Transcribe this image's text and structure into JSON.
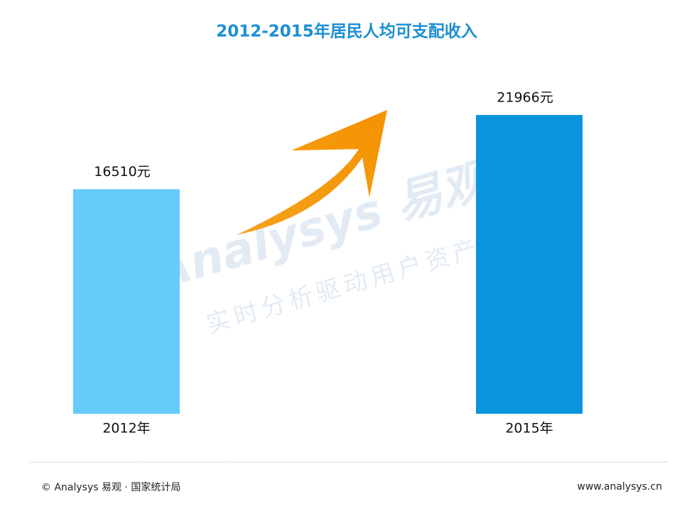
{
  "chart_data": {
    "type": "bar",
    "title": "2012-2015年居民人均可支配收入",
    "categories": [
      "2012年",
      "2015年"
    ],
    "values": [
      16510,
      21966
    ],
    "value_labels": [
      "16510元",
      "21966元"
    ],
    "colors": [
      "#66cbfb",
      "#0b94dc"
    ]
  },
  "watermark": {
    "brand": "Analysys 易观",
    "slogan": "实时分析驱动用户资产"
  },
  "footer": {
    "source": "© Analysys 易观 · 国家统计局",
    "url": "www.analysys.cn"
  }
}
